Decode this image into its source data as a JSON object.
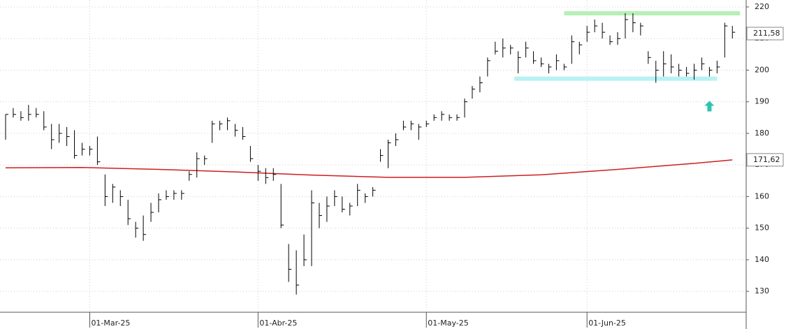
{
  "chart_data": {
    "type": "ohlc",
    "categories": [
      null,
      null,
      null,
      null,
      null,
      null,
      null,
      null,
      null,
      null,
      null,
      "01-Mar-25",
      null,
      null,
      null,
      null,
      null,
      null,
      null,
      null,
      null,
      null,
      null,
      null,
      null,
      null,
      null,
      null,
      null,
      null,
      null,
      null,
      null,
      "01-Abr-25",
      null,
      null,
      null,
      null,
      null,
      null,
      null,
      null,
      null,
      null,
      null,
      null,
      null,
      null,
      null,
      null,
      null,
      null,
      null,
      null,
      null,
      "01-May-25",
      null,
      null,
      null,
      null,
      null,
      null,
      null,
      null,
      null,
      null,
      null,
      null,
      null,
      null,
      null,
      null,
      null,
      null,
      null,
      null,
      "01-Jun-25",
      null,
      null,
      null,
      null,
      null,
      null,
      null,
      null,
      null,
      null,
      null,
      null,
      null,
      null,
      null,
      null,
      null,
      null,
      null
    ],
    "high": [
      186,
      188,
      187,
      189,
      188,
      187,
      183,
      183,
      182,
      181,
      177,
      176,
      179,
      167,
      164,
      162,
      159,
      152,
      154,
      158,
      161,
      162,
      162,
      162,
      168,
      174,
      173,
      184,
      184,
      185,
      183,
      182,
      176,
      170,
      169,
      169,
      164,
      145,
      143,
      148,
      162,
      158,
      160,
      162,
      160,
      158,
      164,
      161,
      163,
      175,
      178,
      180,
      184,
      184,
      183,
      184,
      186,
      187,
      186,
      186,
      191,
      195,
      198,
      204,
      209,
      210,
      208,
      206,
      209,
      206,
      204,
      202,
      205,
      202,
      211,
      209,
      214,
      216,
      215,
      211,
      212,
      218,
      218,
      215,
      206,
      203,
      206,
      205,
      202,
      201,
      202,
      204,
      201,
      203,
      215,
      214
    ],
    "low": [
      178,
      185,
      184,
      184,
      185,
      181,
      175,
      177,
      176,
      172,
      173,
      173,
      170,
      157,
      158,
      157,
      151,
      147,
      146,
      152,
      155,
      159,
      159,
      159,
      165,
      166,
      170,
      177,
      181,
      181,
      179,
      178,
      171,
      165,
      164,
      165,
      150,
      133,
      129,
      138,
      138,
      150,
      152,
      157,
      155,
      154,
      157,
      158,
      160,
      171,
      169,
      176,
      181,
      181,
      178,
      182,
      184,
      184,
      184,
      184,
      185,
      191,
      193,
      198,
      205,
      204,
      205,
      199,
      204,
      202,
      201,
      199,
      200,
      200,
      202,
      205,
      209,
      212,
      210,
      208,
      208,
      210,
      212,
      211,
      202,
      196,
      198,
      199,
      198,
      198,
      197,
      200,
      198,
      199,
      204,
      210
    ],
    "close": [
      186,
      186,
      185,
      186,
      186,
      182,
      178,
      180,
      179,
      173,
      175,
      175,
      171,
      160,
      163,
      160,
      153,
      150,
      148,
      155,
      159,
      160,
      161,
      161,
      167,
      172,
      172,
      183,
      183,
      184,
      181,
      179,
      172,
      168,
      166,
      167,
      151,
      137,
      132,
      140,
      158,
      154,
      157,
      160,
      156,
      157,
      162,
      160,
      162,
      173,
      177,
      178,
      182,
      183,
      182,
      183,
      185,
      186,
      185,
      185,
      190,
      194,
      196,
      203,
      206,
      207,
      207,
      204,
      207,
      203,
      202,
      201,
      203,
      201,
      209,
      208,
      212,
      214,
      212,
      209,
      210,
      216,
      215,
      214,
      204,
      200,
      202,
      201,
      200,
      199,
      200,
      202,
      200,
      201,
      214,
      212
    ],
    "color": "#000000",
    "ma": {
      "x": [
        0,
        10,
        20,
        30,
        40,
        50,
        60,
        70,
        80,
        90,
        95
      ],
      "values": [
        169.1,
        169.2,
        168.6,
        167.8,
        166.8,
        166.1,
        166.1,
        166.9,
        168.6,
        170.5,
        171.6
      ],
      "color": "#cc1f1f"
    },
    "levels": [
      {
        "value": 218,
        "from": 73,
        "to": 96,
        "color": "#b6f0b6"
      },
      {
        "value": 197.3,
        "from": 66.5,
        "to": 93,
        "color": "#b8f2f2"
      }
    ],
    "arrow": {
      "x": 92,
      "y": 188.5,
      "color": "#2cc4b0"
    },
    "last_labels": [
      {
        "value": 211.58,
        "label": "211,58",
        "color": "#222222"
      },
      {
        "value": 171.62,
        "label": "171,62",
        "color": "#222222"
      }
    ],
    "ylim": [
      123.4,
      222.2
    ],
    "yticks": [
      130,
      140,
      150,
      160,
      170,
      180,
      190,
      200,
      210,
      220
    ],
    "grid": true
  }
}
